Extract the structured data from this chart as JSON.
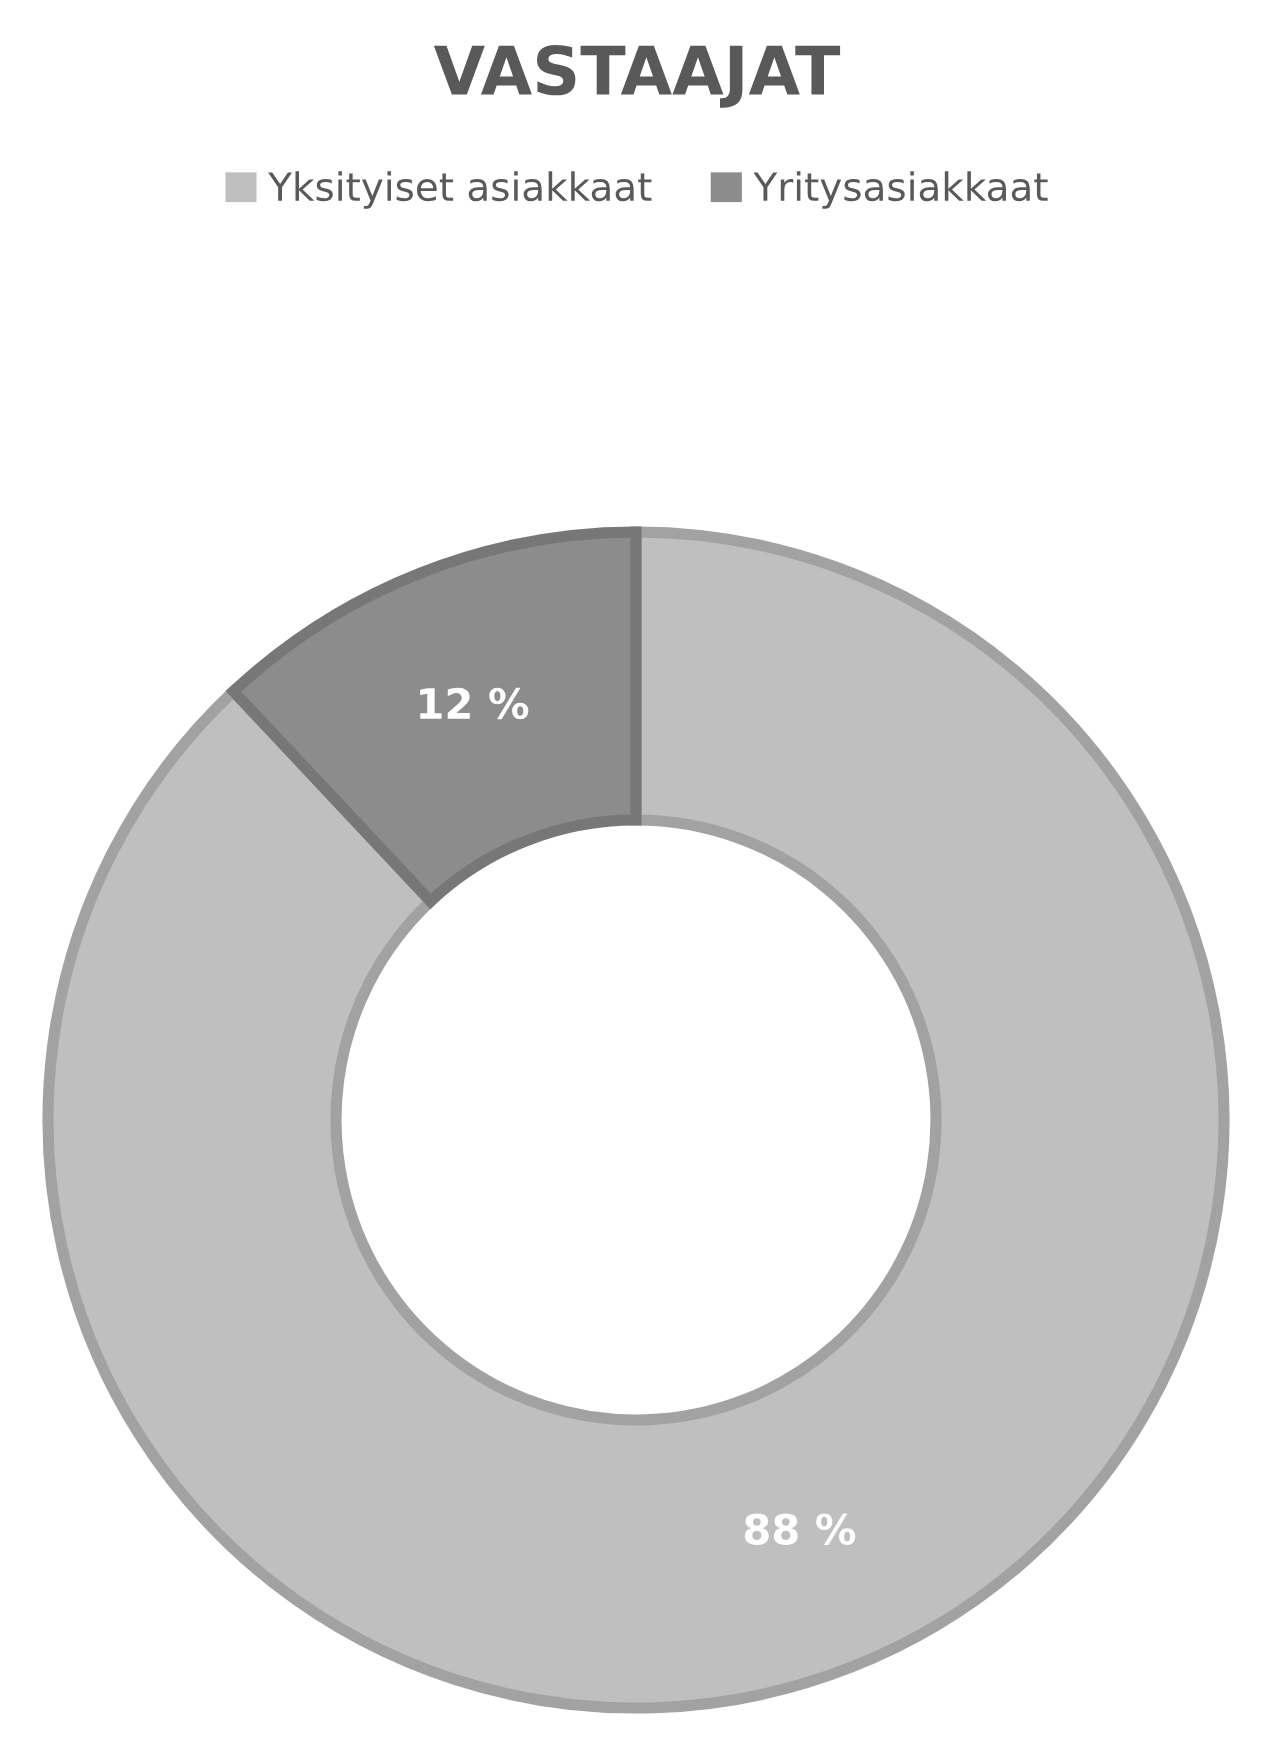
{
  "chart_data": {
    "type": "donut",
    "title": "VASTAAJAT",
    "categories": [
      "Yksityiset asiakkaat",
      "Yritysasiakkaat"
    ],
    "values": [
      88,
      12
    ],
    "colors": [
      "#bfbfbf",
      "#8c8c8c"
    ],
    "value_labels": [
      "88 %",
      "12 %"
    ],
    "legend": "top"
  }
}
